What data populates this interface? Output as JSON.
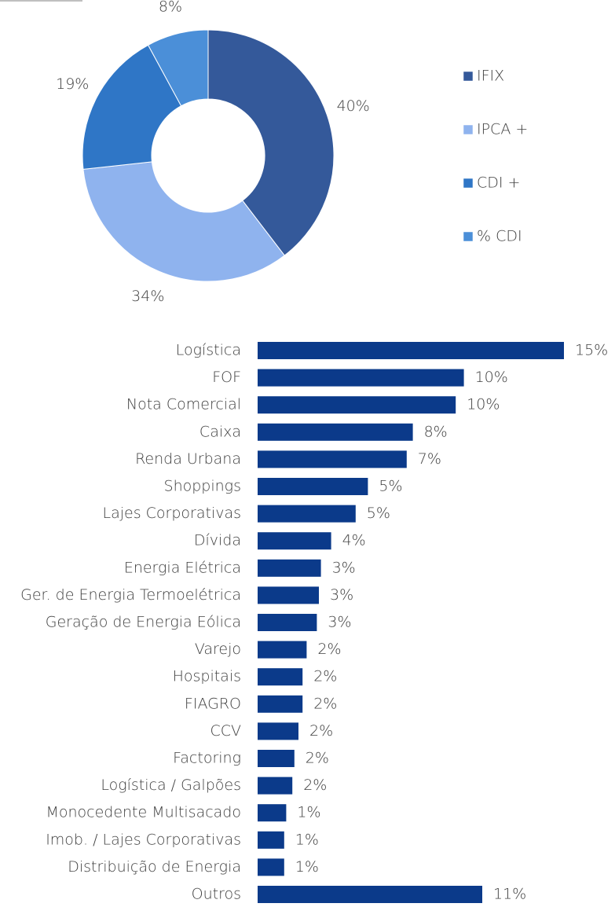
{
  "chart_data": [
    {
      "type": "donut",
      "categories": [
        "IFIX",
        "IPCA +",
        "CDI +",
        "% CDI"
      ],
      "values": [
        40,
        34,
        19,
        8
      ],
      "value_labels": [
        "40%",
        "34%",
        "19%",
        "8%"
      ],
      "colors": [
        "#34599a",
        "#8fb3ee",
        "#2f76c6",
        "#4b8fd8"
      ],
      "legend": "right"
    },
    {
      "type": "barh",
      "categories": [
        "Logística",
        "FOF",
        "Nota Comercial",
        "Caixa",
        "Renda Urbana",
        "Shoppings",
        "Lajes Corporativas",
        "Dívida",
        "Energia Elétrica",
        "Ger. de Energia Termoelétrica",
        "Geração de Energia Eólica",
        "Varejo",
        "Hospitais",
        "FIAGRO",
        "CCV",
        "Factoring",
        "Logística / Galpões",
        "Monocedente Multisacado",
        "Imob. / Lajes Corporativas",
        "Distribuição de Energia",
        "Outros"
      ],
      "values": [
        15.0,
        10.1,
        9.7,
        7.6,
        7.3,
        5.4,
        4.8,
        3.6,
        3.1,
        3.0,
        2.9,
        2.4,
        2.2,
        2.2,
        2.0,
        1.8,
        1.7,
        1.4,
        1.3,
        1.3,
        11.0
      ],
      "value_labels": [
        "15%",
        "10%",
        "10%",
        "8%",
        "7%",
        "5%",
        "5%",
        "4%",
        "3%",
        "3%",
        "3%",
        "2%",
        "2%",
        "2%",
        "2%",
        "2%",
        "2%",
        "1%",
        "1%",
        "1%",
        "11%"
      ],
      "color": "#0b3a8a",
      "xlim": [
        0,
        15
      ]
    }
  ]
}
